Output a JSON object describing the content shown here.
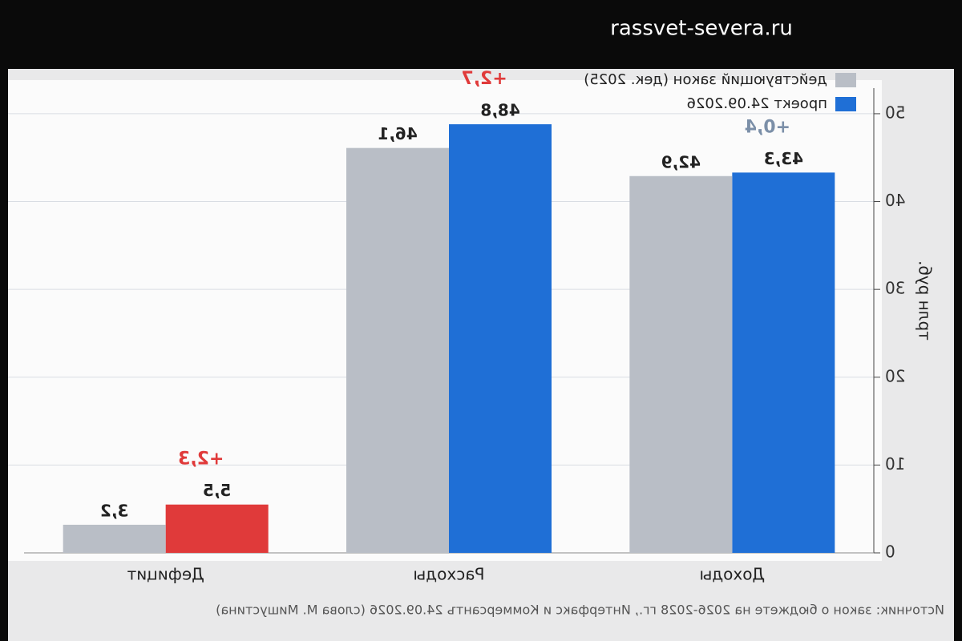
{
  "watermark": "rassvet-severa.ru",
  "chart_data": {
    "type": "bar",
    "mirrored": true,
    "y_label": "трлн руб.",
    "source": "Источник: закон о бюджете на 2026-2028 гг., Интерфакс и Коммерсантъ 24.09.2026 (слова М. Мишустина)",
    "categories": [
      "Доходы",
      "Расходы",
      "Дефицит"
    ],
    "series": [
      {
        "name": "проект 24.09.2026",
        "color": "#1f6fd6",
        "colors": [
          "#1f6fd6",
          "#1f6fd6",
          "#e03a3a"
        ],
        "values": [
          43.3,
          48.8,
          5.5
        ],
        "value_labels": [
          "43,3",
          "48,8",
          "5,5"
        ]
      },
      {
        "name": "действующий закон (дек. 2025)",
        "color": "#b9bec6",
        "colors": [
          "#b9bec6",
          "#b9bec6",
          "#b9bec6"
        ],
        "values": [
          42.9,
          46.1,
          3.2
        ],
        "value_labels": [
          "42,9",
          "46,1",
          "3,2"
        ]
      }
    ],
    "delta_labels": [
      "+0,4",
      "+2,7",
      "+2,3"
    ],
    "delta_colors": [
      "#7b8fa8",
      "#e03a3a",
      "#e03a3a"
    ],
    "ylim": [
      0,
      52
    ],
    "yticks": [
      0,
      10,
      20,
      30,
      40,
      50
    ],
    "grid": true
  }
}
